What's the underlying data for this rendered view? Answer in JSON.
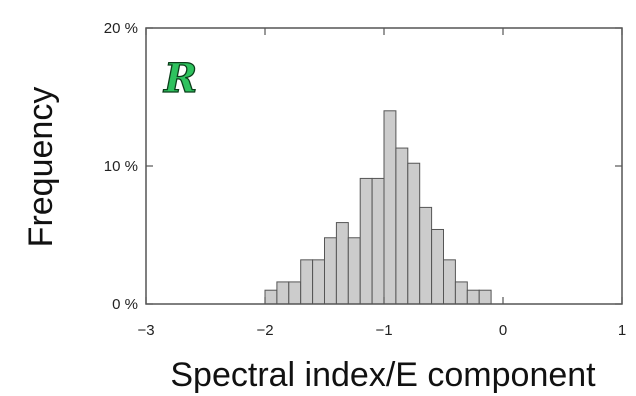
{
  "chart_data": {
    "type": "bar",
    "title": "",
    "xlabel": "Spectral index/E component",
    "ylabel": "Frequency",
    "panel_label": "R",
    "xlim": [
      -3,
      1
    ],
    "ylim": [
      0,
      20
    ],
    "x_ticks": [
      {
        "value": -3,
        "label": "−3"
      },
      {
        "value": -2,
        "label": "−2"
      },
      {
        "value": -1,
        "label": "−1"
      },
      {
        "value": 0,
        "label": "0"
      },
      {
        "value": 1,
        "label": "1"
      }
    ],
    "y_ticks": [
      {
        "value": 0,
        "label": "0 %"
      },
      {
        "value": 10,
        "label": "10 %"
      },
      {
        "value": 20,
        "label": "20 %"
      }
    ],
    "bin_width": 0.1,
    "bin_left_edges": [
      -2.0,
      -1.9,
      -1.8,
      -1.7,
      -1.6,
      -1.5,
      -1.4,
      -1.3,
      -1.2,
      -1.1,
      -1.0,
      -0.9,
      -0.8,
      -0.7,
      -0.6,
      -0.5,
      -0.4,
      -0.3,
      -0.2
    ],
    "values": [
      1.0,
      1.6,
      1.6,
      3.2,
      3.2,
      4.8,
      5.9,
      4.8,
      9.1,
      9.1,
      14.0,
      11.3,
      10.2,
      7.0,
      5.4,
      3.2,
      1.6,
      1.0,
      1.0
    ],
    "colors": {
      "bar_fill": "#cccccc",
      "bar_edge": "#555555",
      "frame": "#555555",
      "panel_letter": "#2ec25e"
    },
    "grid": false
  }
}
